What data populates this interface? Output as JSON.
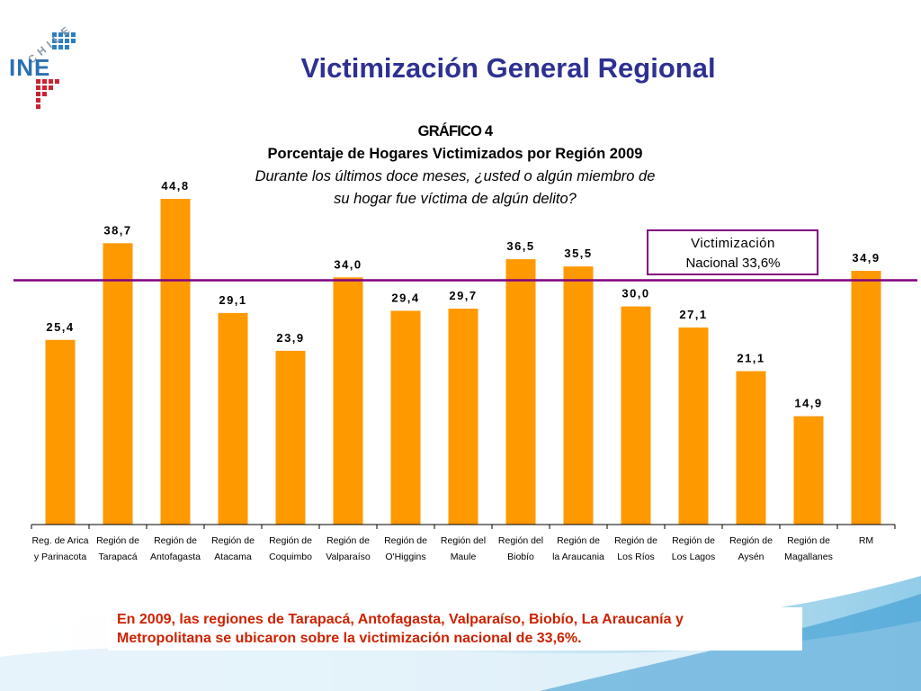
{
  "logo": {
    "country": "CHILE",
    "brand": "INE"
  },
  "slide_title": "Victimización General Regional",
  "chart_data": {
    "type": "bar",
    "title": "GRÁFICO 4",
    "subtitle": "Porcentaje de Hogares Victimizados por Región 2009",
    "question_line1": "Durante los últimos doce meses, ¿usted o algún miembro de",
    "question_line2": "su hogar fue víctima de algún delito?",
    "categories": [
      [
        "Reg. de Arica",
        "y Parinacota"
      ],
      [
        "Región de",
        "Tarapacá"
      ],
      [
        "Región de",
        "Antofagasta"
      ],
      [
        "Región de",
        "Atacama"
      ],
      [
        "Región de",
        "Coquimbo"
      ],
      [
        "Región de",
        "Valparaíso"
      ],
      [
        "Región de",
        "O'Higgins"
      ],
      [
        "Región del",
        "Maule"
      ],
      [
        "Región del",
        "Biobío"
      ],
      [
        "Región de",
        "la Araucania"
      ],
      [
        "Región de",
        "Los Ríos"
      ],
      [
        "Región de",
        "Los Lagos"
      ],
      [
        "Región de",
        "Aysén"
      ],
      [
        "Región de",
        "Magallanes"
      ],
      [
        "RM",
        ""
      ]
    ],
    "values": [
      25.4,
      38.7,
      44.8,
      29.1,
      23.9,
      34.0,
      29.4,
      29.7,
      36.5,
      35.5,
      30.0,
      27.1,
      21.1,
      14.9,
      34.9
    ],
    "value_labels": [
      "25,4",
      "38,7",
      "44,8",
      "29,1",
      "23,9",
      "34,0",
      "29,4",
      "29,7",
      "36,5",
      "35,5",
      "30,0",
      "27,1",
      "21,1",
      "14,9",
      "34,9"
    ],
    "ylim": [
      0,
      50
    ],
    "bar_color": "#ff9900",
    "reference_line": {
      "value": 33.6,
      "label_line1": "Victimización",
      "label_line2": "Nacional 33,6%",
      "color": "#800080"
    },
    "grid": false
  },
  "note": {
    "line1": "En 2009, las regiones de Tarapacá, Antofagasta, Valparaíso, Biobío, La Araucanía y",
    "line2": "Metropolitana se ubicaron sobre la victimización nacional de 33,6%."
  }
}
